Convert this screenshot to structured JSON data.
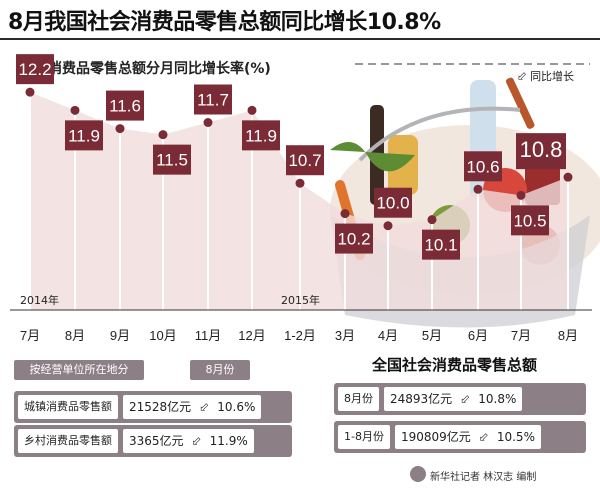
{
  "title": "8月我国社会消费品零售总额同比增长10.8%",
  "subtitle": "社会消费品零售总额分月同比增长率(%)",
  "legend": {
    "icon": "arrow-icon",
    "label": "同比增长"
  },
  "years": {
    "y2014": "2014年",
    "y2015": "2015年"
  },
  "colors": {
    "accent": "#7a2b36",
    "fill": "#f0dcdc",
    "tag": "#8c7f86"
  },
  "chart_data": {
    "type": "area",
    "categories": [
      "7月",
      "8月",
      "9月",
      "10月",
      "11月",
      "12月",
      "1-2月",
      "3月",
      "4月",
      "5月",
      "6月",
      "7月",
      "8月"
    ],
    "values": [
      12.2,
      11.9,
      11.6,
      11.5,
      11.7,
      11.9,
      10.7,
      10.2,
      10.0,
      10.1,
      10.6,
      10.5,
      10.8
    ],
    "labels": [
      "12.2",
      "11.9",
      "11.6",
      "11.5",
      "11.7",
      "11.9",
      "10.7",
      "10.2",
      "10.0",
      "10.1",
      "10.6",
      "10.5",
      "10.8"
    ],
    "title": "社会消费品零售总额分月同比增长率(%)",
    "xlabel": "",
    "ylabel": "",
    "ylim": [
      9.6,
      12.4
    ],
    "grid": false,
    "legend": "top-right"
  },
  "left_panel": {
    "header_label": "按经营单位所在地分",
    "month_label": "8月份",
    "rows": [
      {
        "label": "城镇消费品零售额",
        "amount": "21528亿元",
        "growth": "10.6%"
      },
      {
        "label": "乡村消费品零售额",
        "amount": "3365亿元",
        "growth": "11.9%"
      }
    ]
  },
  "right_panel": {
    "title": "全国社会消费品零售总额",
    "rows": [
      {
        "label": "8月份",
        "amount": "24893亿元",
        "growth": "10.8%"
      },
      {
        "label": "1-8月份",
        "amount": "190809亿元",
        "growth": "10.5%"
      }
    ]
  },
  "credit": "新华社记者  林汉志  编制"
}
